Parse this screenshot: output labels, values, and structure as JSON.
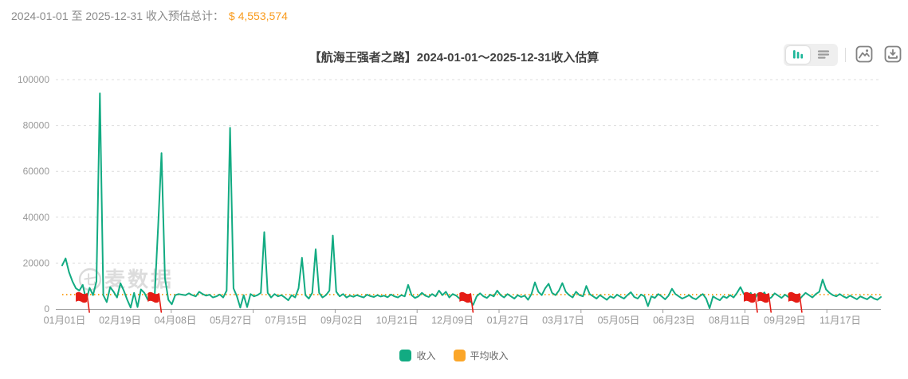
{
  "header": {
    "summary_prefix": "2024-01-01 至 2025-12-31 收入预估总计：",
    "summary_value": "$ 4,553,574"
  },
  "toolbar": {
    "chart_view_icon": "bar-chart-icon",
    "table_view_icon": "list-icon",
    "export_image_icon": "image-icon",
    "download_icon": "download-icon"
  },
  "chart_data": {
    "type": "line",
    "title": "【航海王强者之路】2024-01-01～2025-12-31收入估算",
    "ylim": [
      0,
      100000
    ],
    "y_ticks": [
      0,
      20000,
      40000,
      60000,
      80000,
      100000
    ],
    "x_tick_labels": [
      "01月01日",
      "02月19日",
      "04月08日",
      "05月27日",
      "07月15日",
      "09月02日",
      "10月21日",
      "12月09日",
      "01月27日",
      "03月17日",
      "05月05日",
      "06月23日",
      "08月11日",
      "09月29日",
      "11月17日"
    ],
    "grid": "dashed-horizontal",
    "legend_position": "bottom-center",
    "watermark": "七麦数据",
    "series": [
      {
        "name": "收入",
        "type": "line",
        "color": "#12AB82",
        "values": [
          19000,
          22000,
          16000,
          12000,
          9000,
          8000,
          10500,
          3800,
          9200,
          6000,
          12000,
          94000,
          6000,
          3000,
          9500,
          7500,
          5000,
          11200,
          8000,
          4000,
          600,
          7000,
          800,
          8500,
          7000,
          4000,
          6500,
          5500,
          35500,
          68000,
          13500,
          4000,
          2000,
          6000,
          6500,
          6200,
          6000,
          6800,
          6000,
          5500,
          7500,
          6500,
          5800,
          6200,
          5000,
          5500,
          6300,
          5000,
          8000,
          79000,
          9000,
          5500,
          600,
          6000,
          800,
          6500,
          5500,
          6000,
          7000,
          33500,
          7000,
          5000,
          6500,
          5500,
          6000,
          5000,
          3800,
          6000,
          5000,
          9000,
          22300,
          6000,
          4500,
          7000,
          26000,
          7000,
          5000,
          6000,
          8000,
          32000,
          7500,
          5500,
          6500,
          5000,
          5800,
          5300,
          6000,
          5500,
          5000,
          6200,
          5600,
          5200,
          6000,
          5400,
          5800,
          5100,
          6300,
          5500,
          5000,
          6000,
          5500,
          10500,
          6000,
          4800,
          5500,
          7000,
          5800,
          5200,
          6500,
          5500,
          8000,
          6000,
          7500,
          5000,
          6500,
          5800,
          4500,
          6000,
          5200,
          3500,
          1800,
          5500,
          6800,
          5500,
          4800,
          6200,
          5500,
          8000,
          6000,
          5000,
          6500,
          5500,
          4500,
          6000,
          5200,
          5800,
          4000,
          6500,
          11600,
          7500,
          6000,
          9000,
          11000,
          7000,
          6000,
          8000,
          11300,
          7500,
          6000,
          5000,
          7500,
          6000,
          5500,
          10000,
          6500,
          5500,
          4500,
          6000,
          5000,
          4000,
          5500,
          4800,
          6200,
          5300,
          4500,
          6000,
          7300,
          5200,
          4500,
          6300,
          5500,
          1200,
          5500,
          4800,
          6500,
          5500,
          4200,
          5800,
          8800,
          6500,
          5500,
          4500,
          5200,
          6000,
          4800,
          4200,
          5500,
          6500,
          4500,
          300,
          5500,
          4500,
          3800,
          5500,
          4800,
          6000,
          5000,
          7000,
          9500,
          6500,
          5500,
          7000,
          4000,
          6500,
          5500,
          7200,
          4200,
          5000,
          6800,
          5800,
          4800,
          6200,
          5200,
          4500,
          5800,
          3800,
          5500,
          7000,
          6000,
          5000,
          6500,
          7500,
          12800,
          8500,
          7000,
          6000,
          5500,
          6500,
          5500,
          4800,
          5800,
          5000,
          4200,
          5500,
          4800,
          4200,
          5500,
          4500,
          4000,
          5200
        ]
      }
    ],
    "average": {
      "name": "平均收入",
      "color": "#FBA629",
      "value": 6229,
      "style": "dotted-horizontal"
    },
    "flags": {
      "color": "#E51C15",
      "indices": [
        7,
        28,
        119,
        202,
        206,
        215
      ]
    },
    "legend": [
      {
        "label": "收入",
        "color": "#12AB82"
      },
      {
        "label": "平均收入",
        "color": "#FBA629"
      }
    ]
  }
}
